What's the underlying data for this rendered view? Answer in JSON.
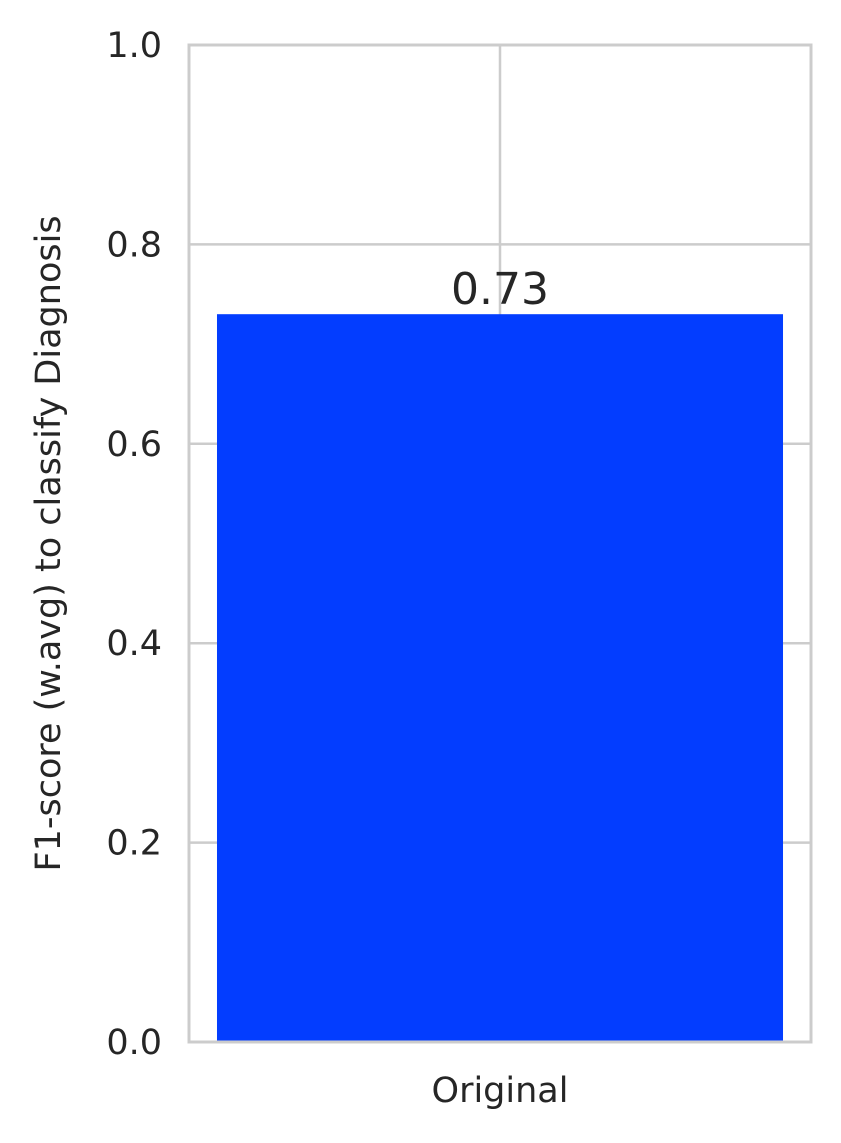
{
  "chart_data": {
    "type": "bar",
    "categories": [
      "Original"
    ],
    "values": [
      0.73
    ],
    "data_labels": [
      "0.73"
    ],
    "title": "",
    "xlabel": "",
    "ylabel": "F1-score (w.avg) to classify Diagnosis",
    "ylim": [
      0,
      1
    ],
    "yticks": [
      0.0,
      0.2,
      0.4,
      0.6,
      0.8,
      1.0
    ],
    "ytick_labels": [
      "0.0",
      "0.2",
      "0.4",
      "0.6",
      "0.8",
      "1.0"
    ],
    "grid": true,
    "legend": "none",
    "colors": {
      "bar": "#033dff",
      "grid": "#cccccc",
      "text": "#262626",
      "background": "#ffffff"
    }
  }
}
